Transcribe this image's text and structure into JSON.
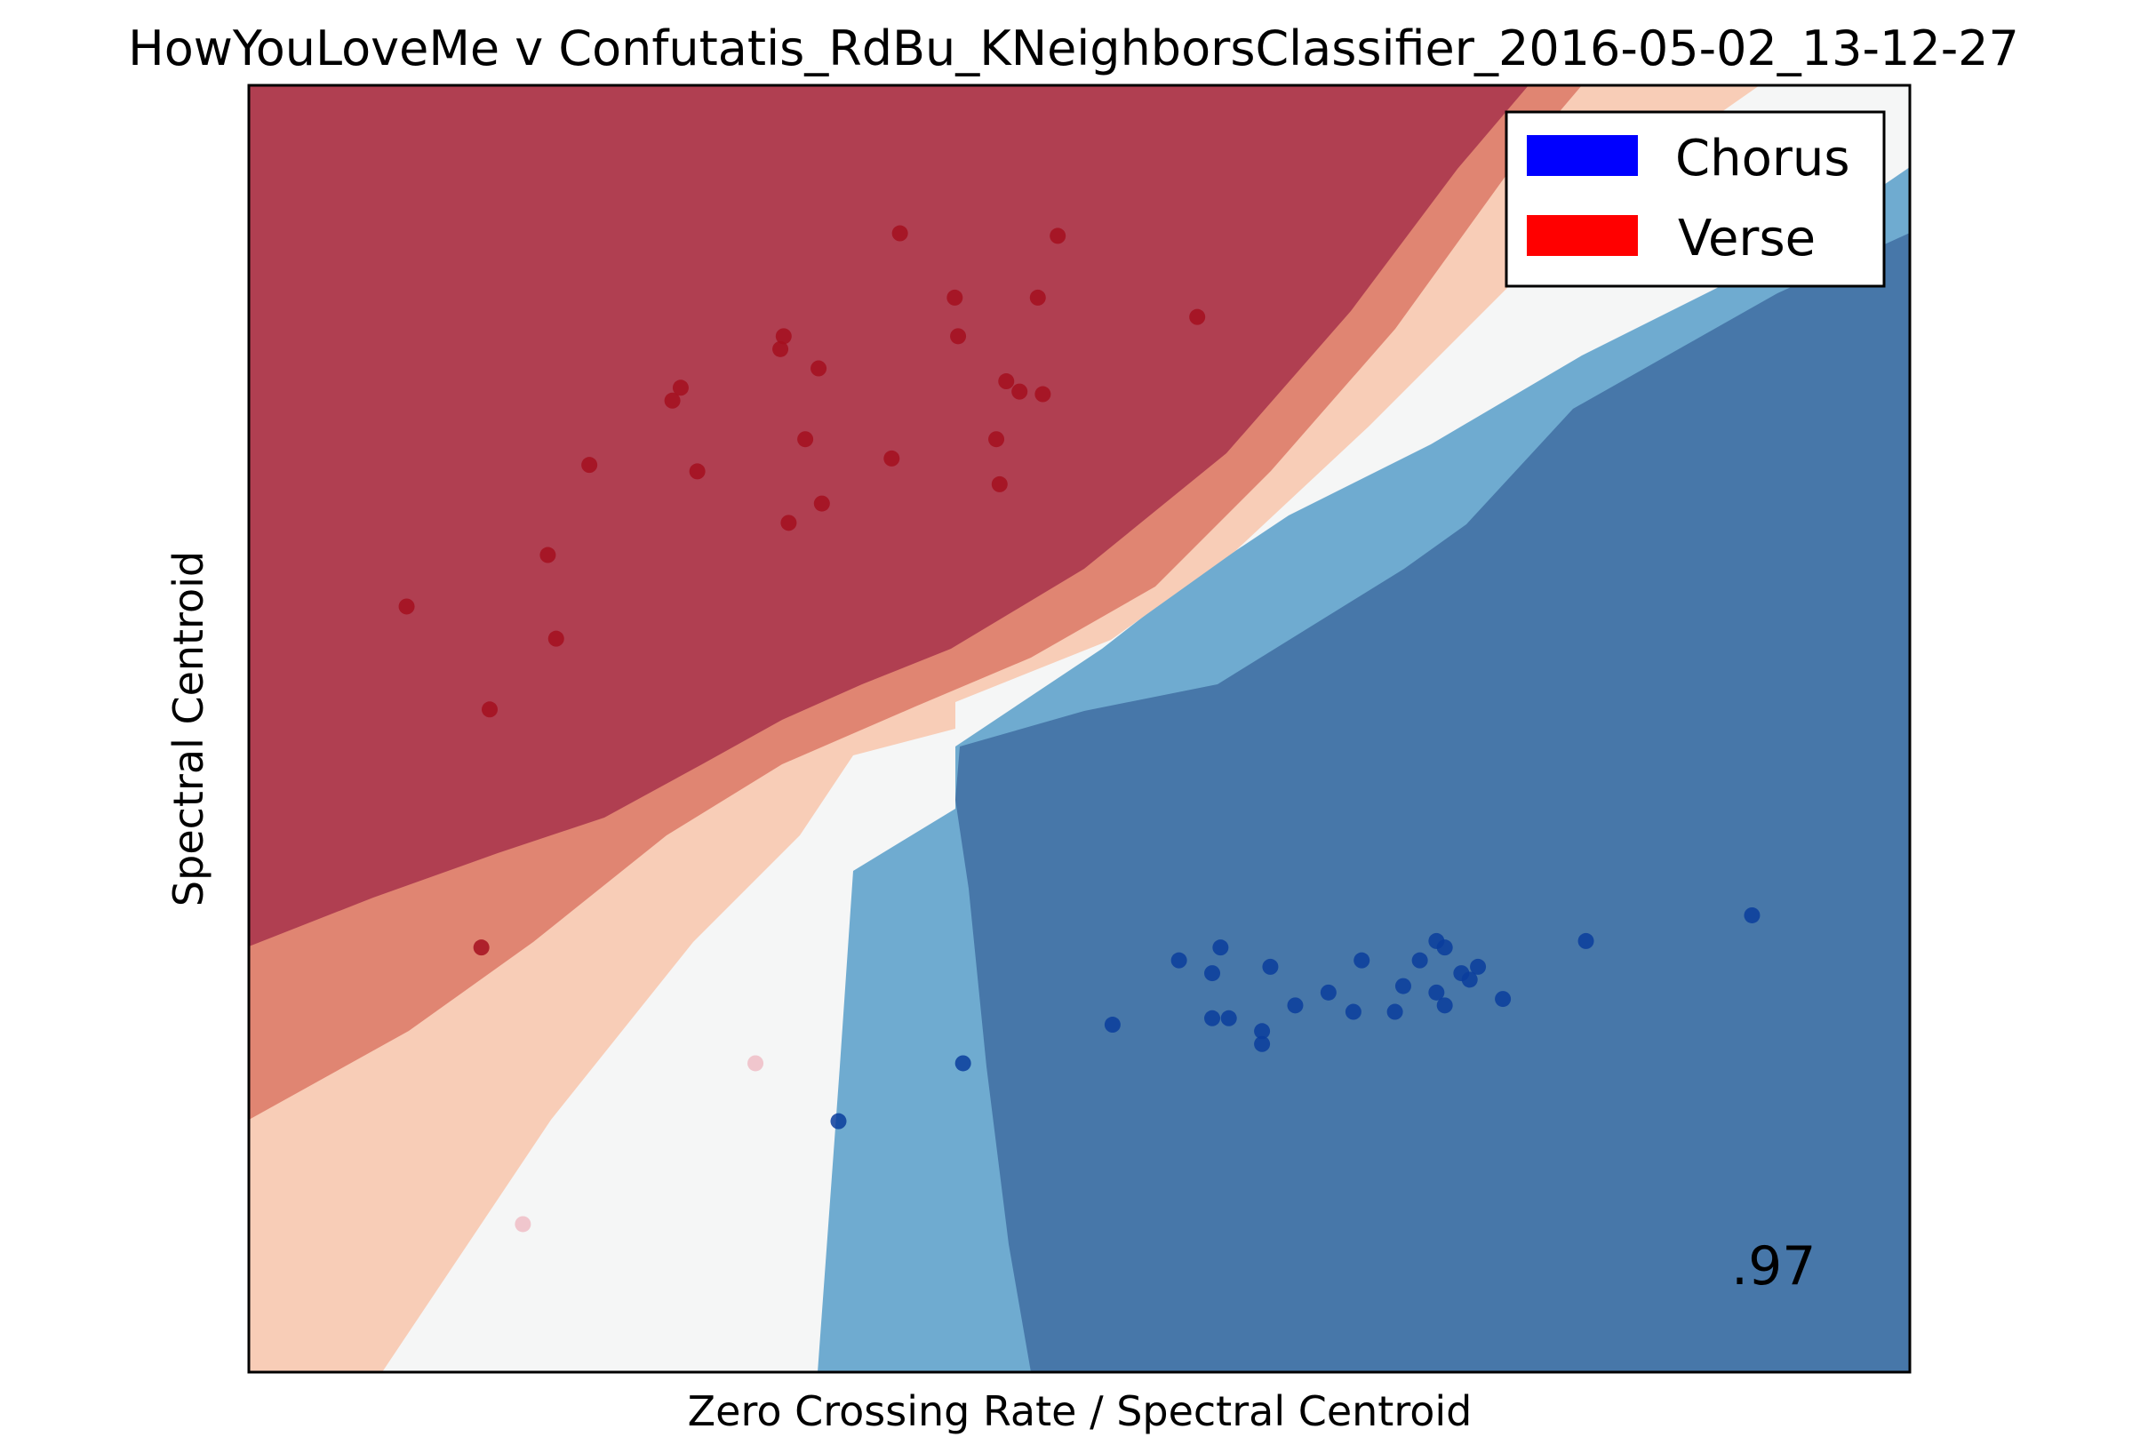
{
  "chart_data": {
    "type": "scatter",
    "title": "HowYouLoveMe v Confutatis_RdBu_KNeighborsClassifier_2016-05-02_13-12-27",
    "xlabel": "Zero Crossing Rate / Spectral Centroid",
    "ylabel": "Spectral Centroid",
    "xticks": [],
    "yticks": [],
    "grid": false,
    "legend_position": "top-right",
    "colormap": "RdBu",
    "score": ".97",
    "background": "decision-surface contour of classifier probability",
    "region_colors": {
      "strong_verse": "#b03f51",
      "verse": "#e08572",
      "weak_verse": "#f8cdb7",
      "neutral": "#f5f6f6",
      "chorus": "#6fabd0",
      "strong_chorus": "#4777a9"
    },
    "series": [
      {
        "name": "Chorus",
        "legend_color": "#0000ff",
        "point_color": "#0a3d9c",
        "points": [
          [
            0.52,
            0.27
          ],
          [
            0.56,
            0.32
          ],
          [
            0.58,
            0.31
          ],
          [
            0.585,
            0.33
          ],
          [
            0.58,
            0.275
          ],
          [
            0.59,
            0.275
          ],
          [
            0.61,
            0.265
          ],
          [
            0.61,
            0.255
          ],
          [
            0.615,
            0.315
          ],
          [
            0.63,
            0.285
          ],
          [
            0.65,
            0.295
          ],
          [
            0.665,
            0.28
          ],
          [
            0.67,
            0.32
          ],
          [
            0.69,
            0.28
          ],
          [
            0.695,
            0.3
          ],
          [
            0.705,
            0.32
          ],
          [
            0.715,
            0.335
          ],
          [
            0.72,
            0.33
          ],
          [
            0.715,
            0.295
          ],
          [
            0.72,
            0.285
          ],
          [
            0.73,
            0.31
          ],
          [
            0.735,
            0.305
          ],
          [
            0.74,
            0.315
          ],
          [
            0.755,
            0.29
          ],
          [
            0.805,
            0.335
          ],
          [
            0.905,
            0.355
          ],
          [
            0.43,
            0.24
          ],
          [
            0.355,
            0.195
          ]
        ]
      },
      {
        "name": "Verse",
        "legend_color": "#ff0000",
        "point_color": "#a50f1f",
        "points": [
          [
            0.095,
            0.595
          ],
          [
            0.145,
            0.515
          ],
          [
            0.18,
            0.635
          ],
          [
            0.185,
            0.57
          ],
          [
            0.205,
            0.705
          ],
          [
            0.255,
            0.755
          ],
          [
            0.26,
            0.765
          ],
          [
            0.27,
            0.7
          ],
          [
            0.32,
            0.795
          ],
          [
            0.322,
            0.805
          ],
          [
            0.325,
            0.66
          ],
          [
            0.335,
            0.725
          ],
          [
            0.343,
            0.78
          ],
          [
            0.345,
            0.675
          ],
          [
            0.387,
            0.71
          ],
          [
            0.392,
            0.885
          ],
          [
            0.425,
            0.835
          ],
          [
            0.427,
            0.805
          ],
          [
            0.45,
            0.725
          ],
          [
            0.452,
            0.69
          ],
          [
            0.456,
            0.77
          ],
          [
            0.464,
            0.762
          ],
          [
            0.478,
            0.76
          ],
          [
            0.475,
            0.835
          ],
          [
            0.487,
            0.883
          ],
          [
            0.571,
            0.82
          ],
          [
            0.14,
            0.33
          ]
        ]
      },
      {
        "name": "",
        "point_color": "#efbdc6",
        "points": [
          [
            0.305,
            0.24
          ],
          [
            0.165,
            0.115
          ]
        ]
      }
    ]
  }
}
